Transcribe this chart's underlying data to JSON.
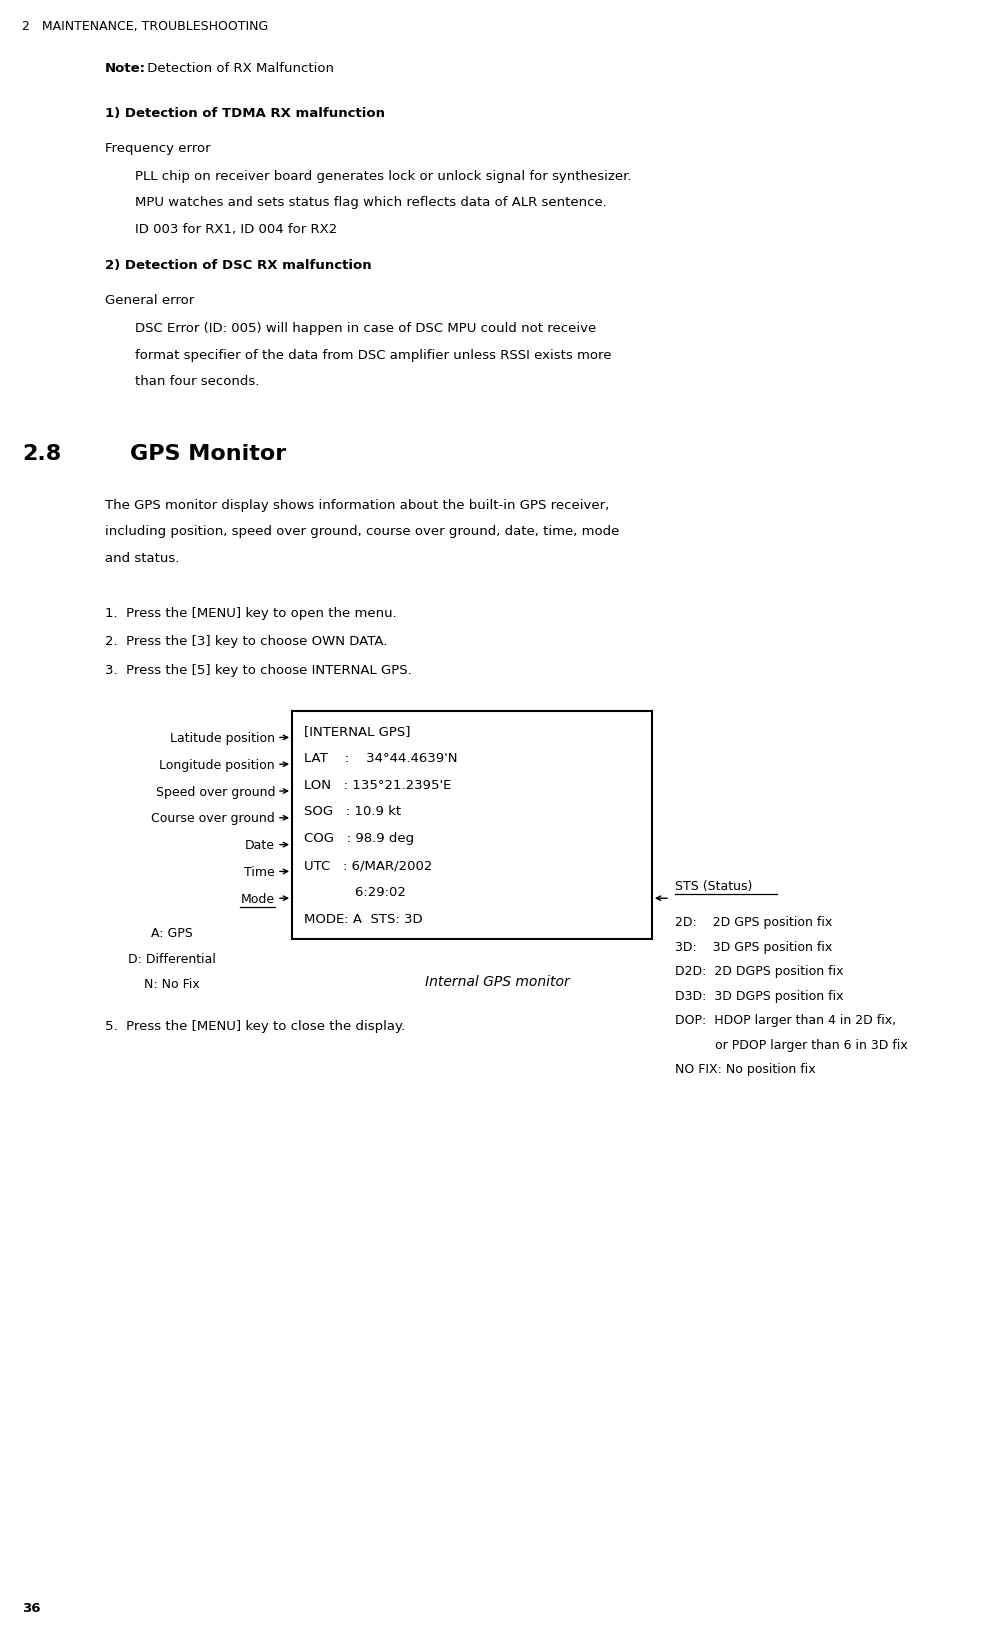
{
  "bg_color": "#ffffff",
  "text_color": "#000000",
  "page_width": 9.95,
  "page_height": 16.33,
  "header": "2   MAINTENANCE, TROUBLESHOOTING",
  "footer": "36",
  "note_bold": "Note:",
  "note_rest": " Detection of RX Malfunction",
  "section1_heading": "1) Detection of TDMA RX malfunction",
  "freq_error_label": "Frequency error",
  "freq_lines": [
    "PLL chip on receiver board generates lock or unlock signal for synthesizer.",
    "MPU watches and sets status flag which reflects data of ALR sentence.",
    "ID 003 for RX1, ID 004 for RX2"
  ],
  "section2_heading": "2) Detection of DSC RX malfunction",
  "general_error_label": "General error",
  "general_lines": [
    "DSC Error (ID: 005) will happen in case of DSC MPU could not receive",
    "format specifier of the data from DSC amplifier unless RSSI exists more",
    "than four seconds."
  ],
  "section28_num": "2.8",
  "section28_title": "GPS Monitor",
  "gps_desc": [
    "The GPS monitor display shows information about the built-in GPS receiver,",
    "including position, speed over ground, course over ground, date, time, mode",
    "and status."
  ],
  "steps": [
    "1.  Press the [MENU] key to open the menu.",
    "2.  Press the [3] key to choose OWN DATA.",
    "3.  Press the [5] key to choose INTERNAL GPS."
  ],
  "box_title": "[INTERNAL GPS]",
  "box_lines": [
    "LAT    :    34°44.4639'N",
    "LON   : 135°21.2395'E",
    "SOG   : 10.9 kt",
    "COG   : 98.9 deg",
    "UTC   : 6/MAR/2002",
    "            6:29:02",
    "MODE: A  STS: 3D"
  ],
  "left_labels": [
    "Latitude position",
    "Longitude position",
    "Speed over ground",
    "Course over ground",
    "Date",
    "Time",
    "Mode"
  ],
  "mode_sub_labels": [
    "A: GPS",
    "D: Differential",
    "N: No Fix"
  ],
  "sts_title": "STS (Status)",
  "sts_lines": [
    "2D:    2D GPS position fix",
    "3D:    3D GPS position fix",
    "D2D:  2D DGPS position fix",
    "D3D:  3D DGPS position fix",
    "DOP:  HDOP larger than 4 in 2D fix,",
    "          or PDOP larger than 6 in 3D fix",
    "NO FIX: No position fix"
  ],
  "caption": "Internal GPS monitor",
  "step5": "5.  Press the [MENU] key to close the display."
}
